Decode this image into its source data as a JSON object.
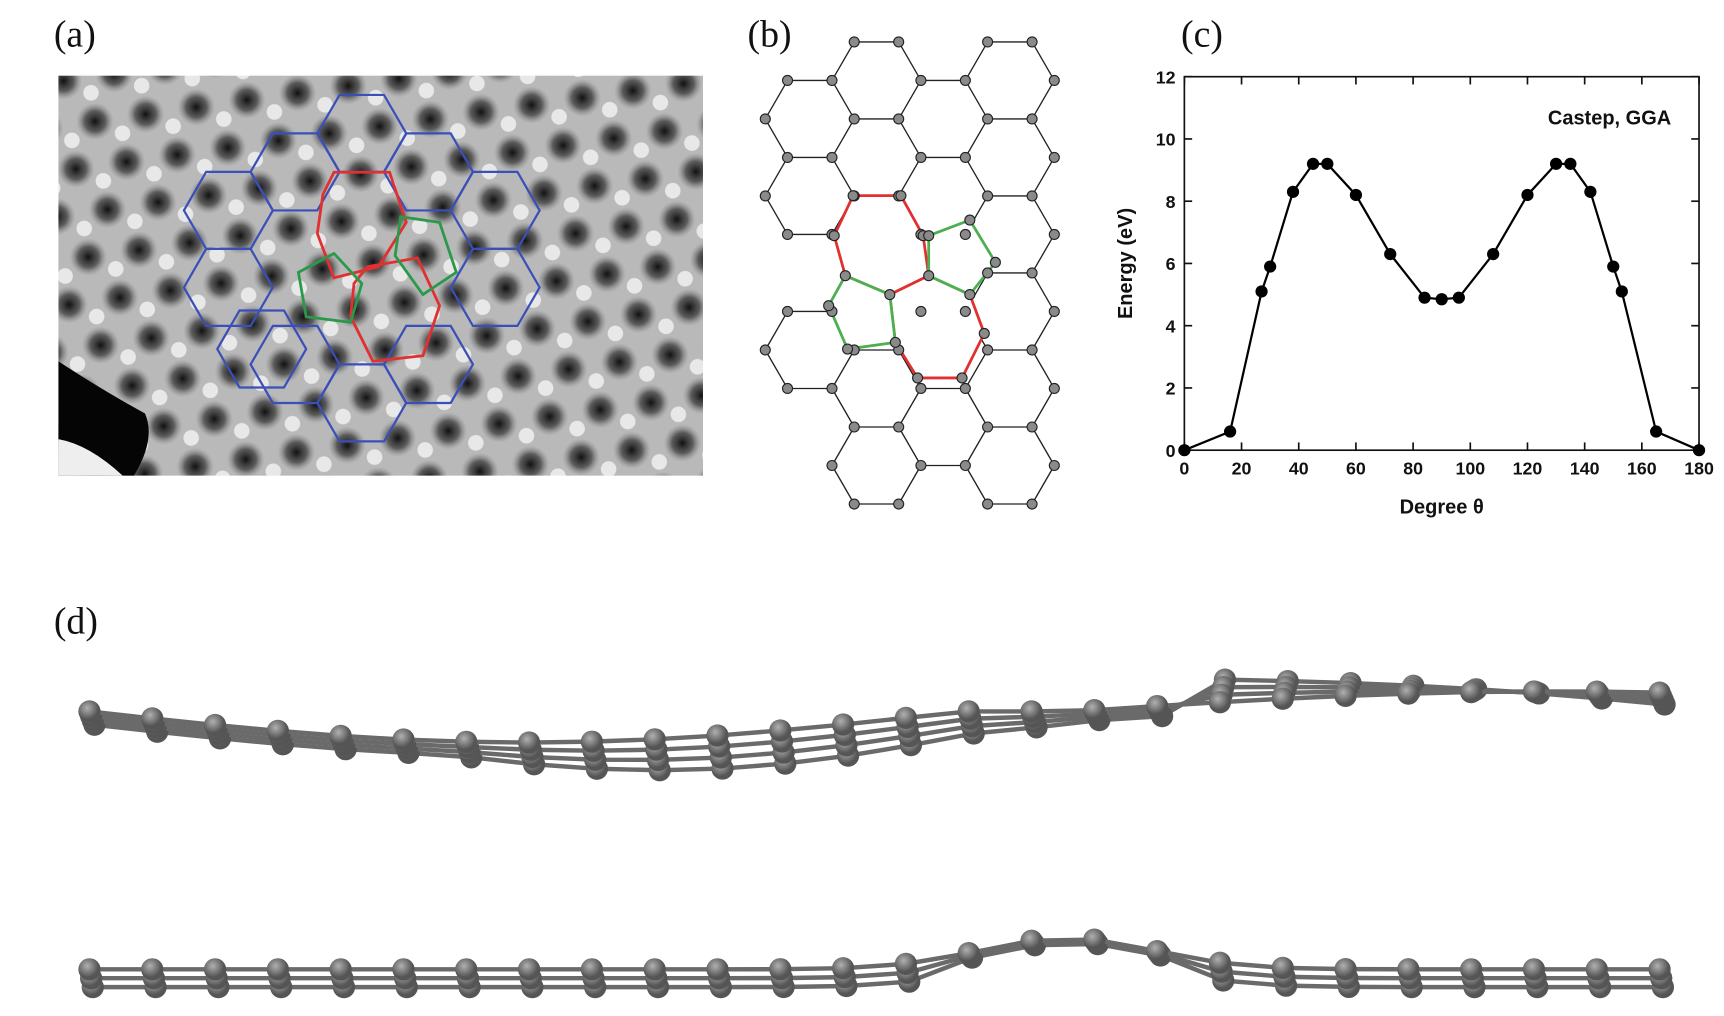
{
  "panels": {
    "a": {
      "label": "(a)"
    },
    "b": {
      "label": "(b)"
    },
    "c": {
      "label": "(c)"
    },
    "d": {
      "label": "(d)"
    }
  },
  "chart_data": {
    "type": "line",
    "annotation": "Castep, GGA",
    "x_label": "Degree θ",
    "y_label": "Energy (eV)",
    "x": [
      0,
      16,
      27,
      30,
      38,
      45,
      50,
      60,
      72,
      84,
      90,
      96,
      108,
      120,
      130,
      135,
      142,
      150,
      153,
      165,
      180
    ],
    "values": [
      0,
      0.6,
      5.1,
      5.9,
      8.3,
      9.2,
      9.2,
      8.2,
      6.3,
      4.9,
      4.85,
      4.9,
      6.3,
      8.2,
      9.2,
      9.2,
      8.3,
      5.9,
      5.1,
      0.6,
      0
    ],
    "color": "#000000",
    "xlim": [
      0,
      180
    ],
    "xticks": [
      0,
      20,
      40,
      60,
      80,
      100,
      120,
      140,
      160,
      180
    ],
    "ylim": [
      0,
      12
    ],
    "yticks": [
      0,
      2,
      4,
      6,
      8,
      10,
      12
    ]
  }
}
